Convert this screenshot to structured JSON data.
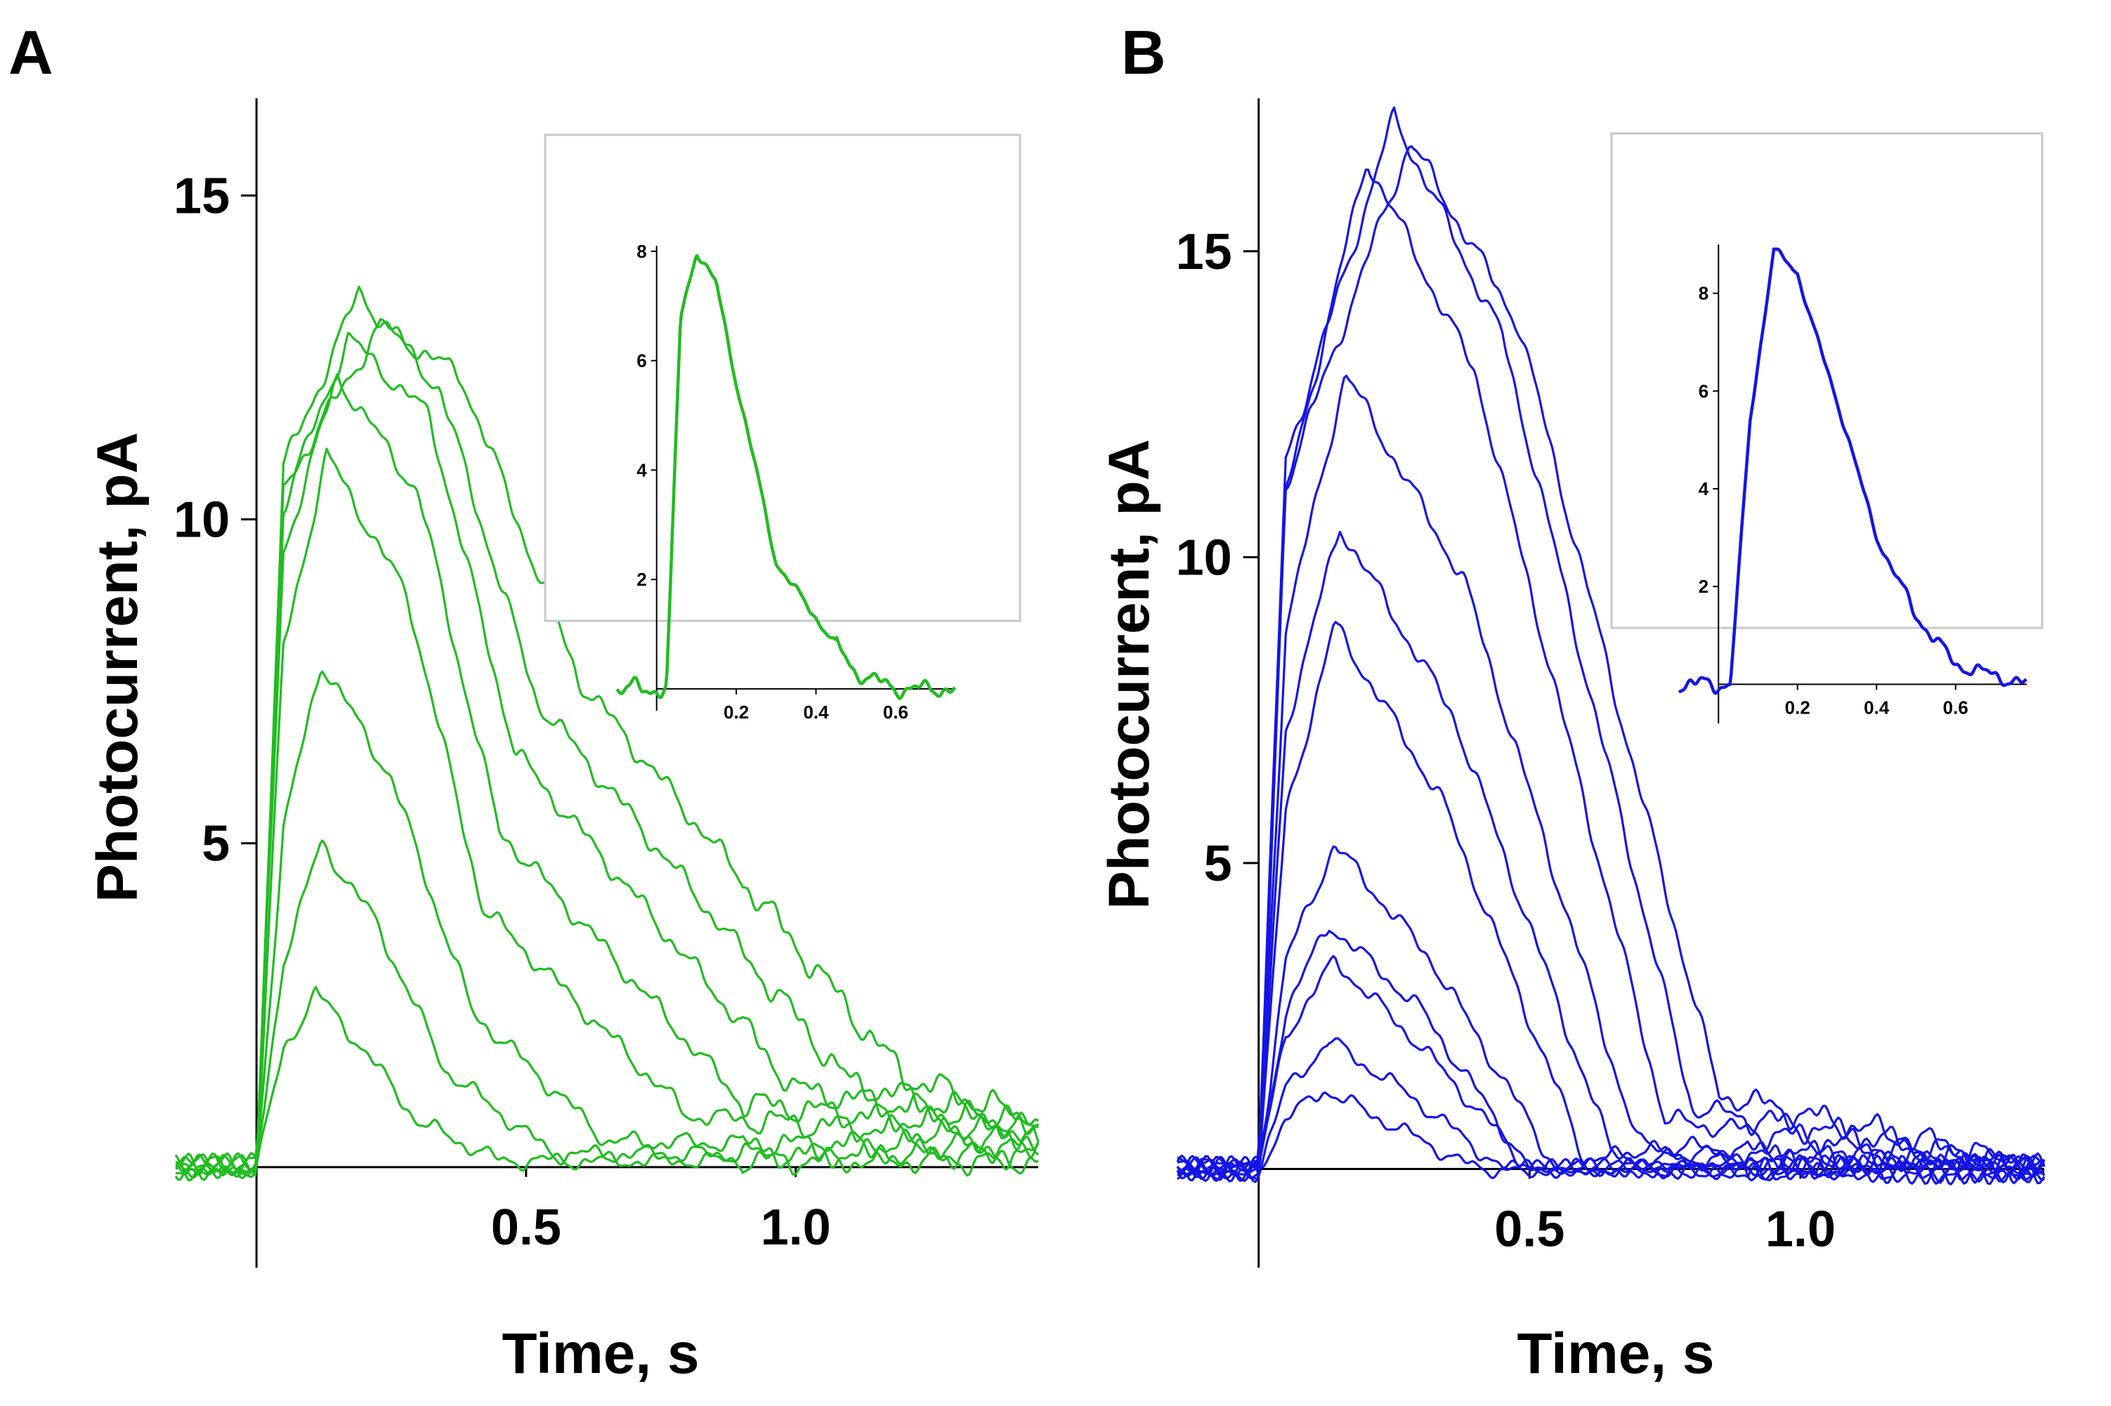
{
  "colors": {
    "panel_a": "#22bb22",
    "panel_b": "#1515e6",
    "axis": "#000000",
    "inset_border": "#c8c8c8"
  },
  "panels": [
    {
      "letter": "A",
      "xlabel": "Time, s",
      "ylabel": "Photocurrent, pA"
    },
    {
      "letter": "B",
      "xlabel": "Time, s",
      "ylabel": "Photocurrent, pA"
    }
  ],
  "chart_data": [
    {
      "panel": "A",
      "type": "line",
      "title": "",
      "xlabel": "Time, s",
      "ylabel": "Photocurrent, pA",
      "xlim": [
        -0.15,
        1.45
      ],
      "ylim": [
        -0.5,
        16.5
      ],
      "xticks": [
        0.5,
        1.0
      ],
      "xtick_labels": [
        "0.5",
        "1.0"
      ],
      "yticks": [
        5,
        10,
        15
      ],
      "ytick_labels": [
        "5",
        "10",
        "15"
      ],
      "grid": false,
      "legend": "none",
      "color": "#22bb22",
      "series": [
        {
          "peak": 2.7,
          "decay_end": 0.45,
          "values": [
            [
              0,
              0
            ],
            [
              0.05,
              1.8
            ],
            [
              0.11,
              2.7
            ],
            [
              0.2,
              1.8
            ],
            [
              0.3,
              0.7
            ],
            [
              0.45,
              0.1
            ],
            [
              1.45,
              0.1
            ]
          ]
        },
        {
          "peak": 5.0,
          "decay_end": 0.55,
          "values": [
            [
              0,
              0
            ],
            [
              0.05,
              3.2
            ],
            [
              0.12,
              5.0
            ],
            [
              0.22,
              3.8
            ],
            [
              0.35,
              1.5
            ],
            [
              0.55,
              0.2
            ],
            [
              1.45,
              0.2
            ]
          ]
        },
        {
          "peak": 7.8,
          "decay_end": 0.65,
          "values": [
            [
              0,
              0
            ],
            [
              0.05,
              5.2
            ],
            [
              0.12,
              7.8
            ],
            [
              0.25,
              6.0
            ],
            [
              0.4,
              2.4
            ],
            [
              0.65,
              0.4
            ],
            [
              1.45,
              0.3
            ]
          ]
        },
        {
          "peak": 11.0,
          "decay_end": 0.8,
          "values": [
            [
              0,
              0
            ],
            [
              0.05,
              8.0
            ],
            [
              0.13,
              11.0
            ],
            [
              0.28,
              8.8
            ],
            [
              0.42,
              4.0
            ],
            [
              0.8,
              0.8
            ],
            [
              1.45,
              0.4
            ]
          ]
        },
        {
          "peak": 12.2,
          "decay_end": 0.9,
          "values": [
            [
              0,
              0
            ],
            [
              0.05,
              9.5
            ],
            [
              0.15,
              12.2
            ],
            [
              0.3,
              10.4
            ],
            [
              0.45,
              5.2
            ],
            [
              0.9,
              1.0
            ],
            [
              1.45,
              0.5
            ]
          ]
        },
        {
          "peak": 12.8,
          "decay_end": 1.0,
          "values": [
            [
              0,
              0
            ],
            [
              0.05,
              10.2
            ],
            [
              0.17,
              12.8
            ],
            [
              0.32,
              11.6
            ],
            [
              0.48,
              6.4
            ],
            [
              1.0,
              1.2
            ],
            [
              1.45,
              0.6
            ]
          ]
        },
        {
          "peak": 13.5,
          "decay_end": 1.1,
          "values": [
            [
              0,
              0
            ],
            [
              0.05,
              10.8
            ],
            [
              0.19,
              13.5
            ],
            [
              0.34,
              12.0
            ],
            [
              0.52,
              7.2
            ],
            [
              1.1,
              1.3
            ],
            [
              1.45,
              0.6
            ]
          ]
        },
        {
          "peak": 13.0,
          "decay_end": 1.2,
          "values": [
            [
              0,
              0
            ],
            [
              0.05,
              10.5
            ],
            [
              0.23,
              13.0
            ],
            [
              0.38,
              12.2
            ],
            [
              0.6,
              7.5
            ],
            [
              1.2,
              1.4
            ],
            [
              1.45,
              0.7
            ]
          ]
        }
      ],
      "inset": {
        "type": "line",
        "xticks": [
          0.2,
          0.4,
          0.6
        ],
        "xtick_labels": [
          "0.2",
          "0.4",
          "0.6"
        ],
        "yticks": [
          2,
          4,
          6,
          8
        ],
        "ytick_labels": [
          "2",
          "4",
          "6",
          "8"
        ],
        "xlim": [
          -0.1,
          0.75
        ],
        "ylim": [
          -0.4,
          8.1
        ],
        "values": [
          [
            -0.1,
            0
          ],
          [
            0,
            0
          ],
          [
            0.025,
            0
          ],
          [
            0.06,
            6.8
          ],
          [
            0.1,
            8.0
          ],
          [
            0.15,
            7.4
          ],
          [
            0.2,
            5.6
          ],
          [
            0.25,
            4.0
          ],
          [
            0.3,
            2.3
          ],
          [
            0.4,
            1.3
          ],
          [
            0.5,
            0.3
          ],
          [
            0.6,
            0
          ],
          [
            0.75,
            0
          ]
        ]
      }
    },
    {
      "panel": "B",
      "type": "line",
      "title": "",
      "xlabel": "Time, s",
      "ylabel": "Photocurrent, pA",
      "xlim": [
        -0.15,
        1.45
      ],
      "ylim": [
        -0.5,
        17.5
      ],
      "xticks": [
        0.5,
        1.0
      ],
      "xtick_labels": [
        "0.5",
        "1.0"
      ],
      "yticks": [
        5,
        10,
        15
      ],
      "ytick_labels": [
        "5",
        "10",
        "15"
      ],
      "grid": false,
      "legend": "none",
      "color": "#1515e6",
      "series": [
        {
          "peak": 1.3,
          "decay_end": 0.4,
          "values": [
            [
              0,
              0
            ],
            [
              0.05,
              0.8
            ],
            [
              0.12,
              1.3
            ],
            [
              0.25,
              0.7
            ],
            [
              0.4,
              0
            ],
            [
              1.45,
              0
            ]
          ]
        },
        {
          "peak": 2.1,
          "decay_end": 0.45,
          "values": [
            [
              0,
              0
            ],
            [
              0.05,
              1.3
            ],
            [
              0.13,
              2.1
            ],
            [
              0.28,
              1.2
            ],
            [
              0.45,
              0
            ],
            [
              1.45,
              0
            ]
          ]
        },
        {
          "peak": 3.4,
          "decay_end": 0.5,
          "values": [
            [
              0,
              0
            ],
            [
              0.05,
              2.2
            ],
            [
              0.14,
              3.4
            ],
            [
              0.3,
              2.0
            ],
            [
              0.5,
              0
            ],
            [
              1.45,
              0
            ]
          ]
        },
        {
          "peak": 4.0,
          "decay_end": 0.5,
          "values": [
            [
              0,
              0
            ],
            [
              0.05,
              2.6
            ],
            [
              0.13,
              4.0
            ],
            [
              0.3,
              2.6
            ],
            [
              0.5,
              0
            ],
            [
              1.45,
              0
            ]
          ]
        },
        {
          "peak": 5.3,
          "decay_end": 0.55,
          "values": [
            [
              0,
              0
            ],
            [
              0.05,
              3.4
            ],
            [
              0.14,
              5.3
            ],
            [
              0.32,
              3.4
            ],
            [
              0.55,
              0
            ],
            [
              1.45,
              0
            ]
          ]
        },
        {
          "peak": 8.9,
          "decay_end": 0.6,
          "values": [
            [
              0,
              0
            ],
            [
              0.05,
              5.8
            ],
            [
              0.14,
              8.9
            ],
            [
              0.34,
              6.0
            ],
            [
              0.6,
              0.2
            ],
            [
              1.45,
              0
            ]
          ]
        },
        {
          "peak": 10.5,
          "decay_end": 0.65,
          "values": [
            [
              0,
              0
            ],
            [
              0.05,
              7.2
            ],
            [
              0.15,
              10.5
            ],
            [
              0.36,
              7.4
            ],
            [
              0.65,
              0.3
            ],
            [
              1.45,
              0
            ]
          ]
        },
        {
          "peak": 13.0,
          "decay_end": 0.7,
          "values": [
            [
              0,
              0
            ],
            [
              0.05,
              8.8
            ],
            [
              0.16,
              13.0
            ],
            [
              0.38,
              9.6
            ],
            [
              0.7,
              0.4
            ],
            [
              1.45,
              0
            ]
          ]
        },
        {
          "peak": 16.5,
          "decay_end": 0.75,
          "values": [
            [
              0,
              0
            ],
            [
              0.05,
              11.0
            ],
            [
              0.2,
              16.5
            ],
            [
              0.4,
              13.0
            ],
            [
              0.75,
              0.8
            ],
            [
              1.45,
              0
            ]
          ]
        },
        {
          "peak": 17.2,
          "decay_end": 0.8,
          "values": [
            [
              0,
              0
            ],
            [
              0.05,
              11.6
            ],
            [
              0.25,
              17.2
            ],
            [
              0.45,
              13.6
            ],
            [
              0.8,
              1.0
            ],
            [
              1.45,
              0
            ]
          ]
        },
        {
          "peak": 16.8,
          "decay_end": 0.85,
          "values": [
            [
              0,
              0
            ],
            [
              0.05,
              11.2
            ],
            [
              0.28,
              16.8
            ],
            [
              0.48,
              13.8
            ],
            [
              0.85,
              1.2
            ],
            [
              1.45,
              0
            ]
          ]
        }
      ],
      "inset": {
        "type": "line",
        "xticks": [
          0.2,
          0.4,
          0.6
        ],
        "xtick_labels": [
          "0.2",
          "0.4",
          "0.6"
        ],
        "yticks": [
          2,
          4,
          6,
          8
        ],
        "ytick_labels": [
          "2",
          "4",
          "6",
          "8"
        ],
        "xlim": [
          -0.1,
          0.78
        ],
        "ylim": [
          -0.8,
          9.0
        ],
        "values": [
          [
            -0.1,
            0
          ],
          [
            0,
            0
          ],
          [
            0.03,
            0
          ],
          [
            0.08,
            5.4
          ],
          [
            0.14,
            8.9
          ],
          [
            0.2,
            8.4
          ],
          [
            0.26,
            6.8
          ],
          [
            0.33,
            5.0
          ],
          [
            0.4,
            3.0
          ],
          [
            0.5,
            1.4
          ],
          [
            0.6,
            0.4
          ],
          [
            0.78,
            0
          ]
        ]
      }
    }
  ]
}
